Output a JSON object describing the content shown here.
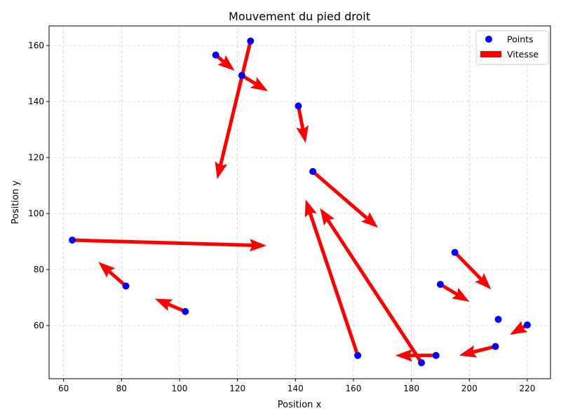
{
  "chart_data": {
    "type": "scatter",
    "title": "Mouvement du pied droit",
    "xlabel": "Position x",
    "ylabel": "Position y",
    "xlim": [
      55,
      228
    ],
    "ylim": [
      41,
      167
    ],
    "xticks": [
      60,
      80,
      100,
      120,
      140,
      160,
      180,
      200,
      220
    ],
    "yticks": [
      60,
      80,
      100,
      120,
      140,
      160
    ],
    "grid": true,
    "legend_position": "top-right",
    "legend": [
      "Points",
      "Vitesse"
    ],
    "colors": {
      "points": "#0000ff",
      "vectors": "#ff0000"
    },
    "series": [
      {
        "name": "Points",
        "marker": "circle",
        "points": [
          {
            "x": 63,
            "y": 90.5
          },
          {
            "x": 81.5,
            "y": 74.1
          },
          {
            "x": 102,
            "y": 65
          },
          {
            "x": 112.5,
            "y": 156.6
          },
          {
            "x": 121.5,
            "y": 149.3
          },
          {
            "x": 124.5,
            "y": 161.6
          },
          {
            "x": 141,
            "y": 138.4
          },
          {
            "x": 146,
            "y": 115
          },
          {
            "x": 161.5,
            "y": 49.3
          },
          {
            "x": 183.5,
            "y": 46.7
          },
          {
            "x": 188.5,
            "y": 49.3
          },
          {
            "x": 190,
            "y": 74.7
          },
          {
            "x": 195,
            "y": 86.1
          },
          {
            "x": 209,
            "y": 52.5
          },
          {
            "x": 210,
            "y": 62.2
          },
          {
            "x": 220,
            "y": 60.2
          }
        ]
      },
      {
        "name": "Vitesse",
        "type": "quiver",
        "vectors": [
          {
            "x": 63,
            "y": 90.5,
            "dx": 67,
            "dy": -2
          },
          {
            "x": 81.5,
            "y": 74.1,
            "dx": -9.5,
            "dy": 8.6
          },
          {
            "x": 102,
            "y": 65,
            "dx": -10.5,
            "dy": 4.6
          },
          {
            "x": 112.5,
            "y": 156.6,
            "dx": 6.5,
            "dy": -5.6
          },
          {
            "x": 121.5,
            "y": 149.3,
            "dx": 9,
            "dy": -5.6
          },
          {
            "x": 124.5,
            "y": 161.6,
            "dx": -11.5,
            "dy": -49.3
          },
          {
            "x": 141,
            "y": 138.4,
            "dx": 2.5,
            "dy": -13.2
          },
          {
            "x": 146,
            "y": 115,
            "dx": 22.5,
            "dy": -20.1
          },
          {
            "x": 161.5,
            "y": 49.3,
            "dx": -18,
            "dy": 55.7
          },
          {
            "x": 183.5,
            "y": 46.7,
            "dx": -35,
            "dy": 55.2
          },
          {
            "x": 188.5,
            "y": 49.3,
            "dx": -14,
            "dy": 0
          },
          {
            "x": 190,
            "y": 74.7,
            "dx": 10,
            "dy": -6.2
          },
          {
            "x": 195,
            "y": 86.1,
            "dx": 12.5,
            "dy": -13.2
          },
          {
            "x": 209,
            "y": 52.5,
            "dx": -12.5,
            "dy": -3.2
          },
          {
            "x": 220,
            "y": 60.2,
            "dx": -6,
            "dy": -3.5
          }
        ]
      }
    ]
  }
}
